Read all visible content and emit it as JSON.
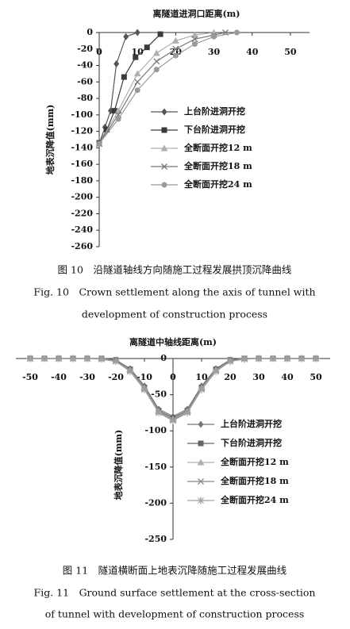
{
  "chart_data": [
    {
      "type": "line",
      "x_label": "离隧道进洞口距离(m)",
      "y_label": "地表沉降值(mm)",
      "xlim": [
        0,
        55
      ],
      "xticks": [
        0,
        10,
        20,
        30,
        40,
        50
      ],
      "ylim": [
        -260,
        0
      ],
      "yticks": [
        0,
        -20,
        -40,
        -60,
        -80,
        -100,
        -120,
        -140,
        -160,
        -180,
        -200,
        -220,
        -240,
        -260
      ],
      "series": [
        {
          "name": "上台阶进洞开挖",
          "color": "#555555",
          "marker": "diamond",
          "x": [
            0,
            1.5,
            3,
            4.5,
            7,
            10
          ],
          "values": [
            -135,
            -115,
            -95,
            -38,
            -5,
            0
          ]
        },
        {
          "name": "下台阶进洞开挖",
          "color": "#3a3a3a",
          "marker": "square",
          "x": [
            0,
            2,
            4,
            6.5,
            9.5,
            12.5,
            16
          ],
          "values": [
            -134,
            -118,
            -95,
            -54,
            -30,
            -18,
            -2
          ]
        },
        {
          "name": "全断面开挖12 m",
          "color": "#b0b0b0",
          "marker": "triangle",
          "x": [
            0,
            5,
            10,
            15,
            20,
            25,
            30
          ],
          "values": [
            -135,
            -95,
            -50,
            -25,
            -10,
            -3,
            0
          ]
        },
        {
          "name": "全断面开挖18 m",
          "color": "#777777",
          "marker": "x",
          "x": [
            0,
            5,
            10,
            15,
            20,
            25,
            30,
            33
          ],
          "values": [
            -135,
            -100,
            -60,
            -35,
            -20,
            -8,
            -3,
            0
          ]
        },
        {
          "name": "全断面开挖24 m",
          "color": "#999999",
          "marker": "circle",
          "x": [
            0,
            5,
            10,
            15,
            20,
            25,
            30,
            36
          ],
          "values": [
            -135,
            -105,
            -70,
            -45,
            -28,
            -14,
            -5,
            0
          ]
        }
      ],
      "caption": [
        "图 10　沿隧道轴线方向随施工过程发展拱顶沉降曲线",
        "Fig. 10　Crown settlement along the axis of tunnel with",
        "development of construction process"
      ]
    },
    {
      "type": "line",
      "x_label": "离隧道中轴线距离(m)",
      "y_label": "地表沉降值(mm)",
      "xlim": [
        -55,
        55
      ],
      "xticks": [
        -50,
        -40,
        -30,
        -20,
        -10,
        0,
        10,
        20,
        30,
        40,
        50
      ],
      "ylim": [
        -250,
        0
      ],
      "yticks": [
        0,
        -50,
        -100,
        -150,
        -200,
        -250
      ],
      "x": [
        -50,
        -45,
        -40,
        -35,
        -30,
        -25,
        -20,
        -15,
        -10,
        -5,
        0,
        5,
        10,
        15,
        20,
        25,
        30,
        35,
        40,
        45,
        50
      ],
      "series": [
        {
          "name": "上台阶进洞开挖",
          "color": "#777777",
          "marker": "diamond",
          "values": [
            0,
            0,
            0,
            0,
            0,
            0,
            -2,
            -14,
            -38,
            -70,
            -80,
            -70,
            -38,
            -14,
            -2,
            0,
            0,
            0,
            0,
            0,
            0
          ]
        },
        {
          "name": "下台阶进洞开挖",
          "color": "#666666",
          "marker": "square",
          "values": [
            0,
            0,
            0,
            0,
            0,
            0,
            -2,
            -15,
            -40,
            -72,
            -82,
            -72,
            -40,
            -15,
            -2,
            0,
            0,
            0,
            0,
            0,
            0
          ]
        },
        {
          "name": "全断面开挖12 m",
          "color": "#b0b0b0",
          "marker": "triangle",
          "values": [
            0,
            0,
            0,
            0,
            0,
            0,
            -3,
            -16,
            -41,
            -73,
            -84,
            -73,
            -41,
            -16,
            -3,
            0,
            0,
            0,
            0,
            0,
            0
          ]
        },
        {
          "name": "全断面开挖18 m",
          "color": "#888888",
          "marker": "x",
          "values": [
            0,
            0,
            0,
            0,
            0,
            0,
            -3,
            -17,
            -42,
            -74,
            -85,
            -74,
            -42,
            -17,
            -3,
            0,
            0,
            0,
            0,
            0,
            0
          ]
        },
        {
          "name": "全断面开挖24 m",
          "color": "#a0a0a0",
          "marker": "star",
          "values": [
            0,
            0,
            0,
            0,
            0,
            -1,
            -4,
            -18,
            -43,
            -75,
            -86,
            -75,
            -43,
            -18,
            -4,
            -1,
            0,
            0,
            0,
            0,
            0
          ]
        }
      ],
      "caption": [
        "图 11　隧道横断面上地表沉降随施工过程发展曲线",
        "Fig. 11　Ground surface settlement at the cross-section",
        "of tunnel with development of construction process"
      ]
    }
  ]
}
